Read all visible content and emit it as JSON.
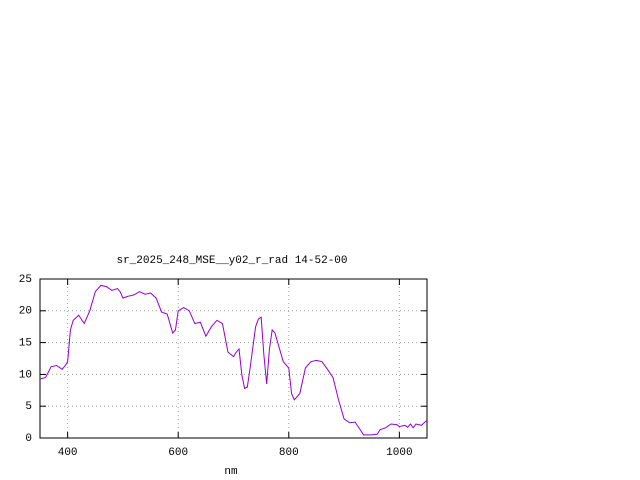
{
  "chart_data": {
    "type": "line",
    "title": "sr_2025_248_MSE__y02_r_rad 14-52-00",
    "x_label": "nm",
    "xlim": [
      350,
      1050
    ],
    "xticks": [
      400,
      600,
      800,
      1000
    ],
    "ylim": [
      0,
      25
    ],
    "yticks": [
      0,
      5,
      10,
      15,
      20,
      25
    ],
    "grid": true,
    "series": [
      {
        "color": "#9400d3",
        "x": [
          350,
          360,
          370,
          380,
          390,
          395,
          400,
          405,
          410,
          420,
          430,
          440,
          450,
          460,
          470,
          480,
          490,
          495,
          500,
          510,
          520,
          530,
          540,
          550,
          560,
          570,
          580,
          590,
          595,
          600,
          610,
          620,
          630,
          640,
          650,
          660,
          670,
          680,
          690,
          700,
          705,
          710,
          715,
          720,
          725,
          730,
          740,
          745,
          750,
          755,
          760,
          765,
          770,
          775,
          780,
          790,
          795,
          800,
          805,
          810,
          820,
          830,
          840,
          850,
          860,
          870,
          880,
          890,
          900,
          910,
          920,
          930,
          935,
          950,
          960,
          965,
          975,
          985,
          995,
          1000,
          1010,
          1015,
          1020,
          1025,
          1030,
          1040,
          1050
        ],
        "values": [
          9.3,
          9.5,
          11.2,
          11.4,
          10.8,
          11.3,
          12,
          17,
          18.5,
          19.3,
          18,
          20,
          23,
          24,
          23.8,
          23.2,
          23.5,
          23,
          22,
          22.3,
          22.5,
          23,
          22.6,
          22.8,
          22,
          19.8,
          19.5,
          16.5,
          17,
          20,
          20.5,
          20,
          18,
          18.2,
          16,
          17.5,
          18.5,
          18,
          13.5,
          12.8,
          13.5,
          14,
          10,
          7.8,
          8,
          11,
          17.5,
          18.7,
          19,
          13,
          8.5,
          14,
          17,
          16.5,
          15,
          12,
          11.5,
          11,
          7,
          6,
          7,
          11,
          12,
          12.2,
          12,
          10.8,
          9.5,
          6,
          3,
          2.4,
          2.5,
          1.2,
          0.5,
          0.5,
          0.6,
          1.3,
          1.6,
          2.2,
          2.1,
          1.8,
          2.0,
          1.7,
          2.2,
          1.6,
          2.2,
          2.0,
          2.8
        ]
      }
    ]
  }
}
